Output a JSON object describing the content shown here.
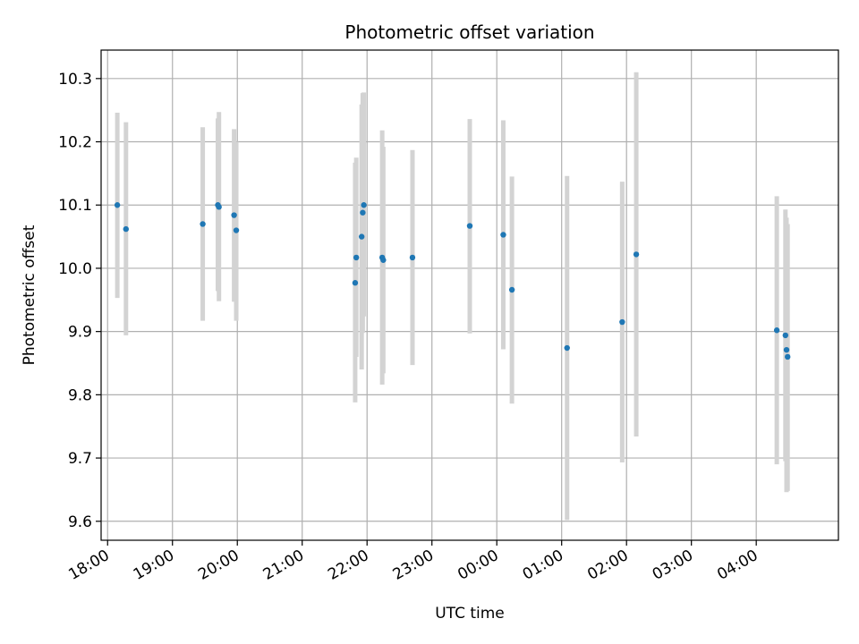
{
  "chart_data": {
    "type": "scatter",
    "title": "Photometric offset variation",
    "xlabel": "UTC time",
    "ylabel": "Photometric offset",
    "grid": true,
    "x_unit": "UTC time of day",
    "x_ticks": [
      {
        "time": "18:00",
        "label": "18:00"
      },
      {
        "time": "19:00",
        "label": "19:00"
      },
      {
        "time": "20:00",
        "label": "20:00"
      },
      {
        "time": "21:00",
        "label": "21:00"
      },
      {
        "time": "22:00",
        "label": "22:00"
      },
      {
        "time": "23:00",
        "label": "23:00"
      },
      {
        "time": "00:00",
        "label": "00:00"
      },
      {
        "time": "01:00",
        "label": "01:00"
      },
      {
        "time": "02:00",
        "label": "02:00"
      },
      {
        "time": "03:00",
        "label": "03:00"
      },
      {
        "time": "04:00",
        "label": "04:00"
      }
    ],
    "y_ticks": [
      9.6,
      9.7,
      9.8,
      9.9,
      10.0,
      10.1,
      10.2,
      10.3
    ],
    "y_tick_labels": [
      "9.6",
      "9.7",
      "9.8",
      "9.9",
      "10.0",
      "10.1",
      "10.2",
      "10.3"
    ],
    "ylim": [
      9.57,
      10.345
    ],
    "xlim": [
      "17:54",
      "05:16"
    ],
    "point_color": "#1f77b4",
    "errorbar_color": "#d3d3d3",
    "points": [
      {
        "t": "18:09",
        "y": 10.1,
        "ylo": 9.953,
        "yhi": 10.246
      },
      {
        "t": "18:17",
        "y": 10.062,
        "ylo": 9.894,
        "yhi": 10.231
      },
      {
        "t": "19:28",
        "y": 10.07,
        "ylo": 9.917,
        "yhi": 10.223
      },
      {
        "t": "19:42",
        "y": 10.1,
        "ylo": 9.964,
        "yhi": 10.237
      },
      {
        "t": "19:43",
        "y": 10.097,
        "ylo": 9.948,
        "yhi": 10.247
      },
      {
        "t": "19:57",
        "y": 10.084,
        "ylo": 9.947,
        "yhi": 10.22
      },
      {
        "t": "19:59",
        "y": 10.06,
        "ylo": 9.917,
        "yhi": 10.2
      },
      {
        "t": "21:49",
        "y": 9.977,
        "ylo": 9.788,
        "yhi": 10.167
      },
      {
        "t": "21:50",
        "y": 10.017,
        "ylo": 9.86,
        "yhi": 10.175
      },
      {
        "t": "21:55",
        "y": 10.05,
        "ylo": 9.84,
        "yhi": 10.259
      },
      {
        "t": "21:56",
        "y": 10.088,
        "ylo": 9.898,
        "yhi": 10.277
      },
      {
        "t": "21:57",
        "y": 10.1,
        "ylo": 9.924,
        "yhi": 10.278
      },
      {
        "t": "22:14",
        "y": 10.017,
        "ylo": 9.816,
        "yhi": 10.218
      },
      {
        "t": "22:15",
        "y": 10.013,
        "ylo": 9.834,
        "yhi": 10.192
      },
      {
        "t": "22:42",
        "y": 10.017,
        "ylo": 9.847,
        "yhi": 10.187
      },
      {
        "t": "23:35",
        "y": 10.067,
        "ylo": 9.897,
        "yhi": 10.236
      },
      {
        "t": "00:06",
        "y": 10.053,
        "ylo": 9.872,
        "yhi": 10.234
      },
      {
        "t": "00:14",
        "y": 9.966,
        "ylo": 9.786,
        "yhi": 10.145
      },
      {
        "t": "01:05",
        "y": 9.874,
        "ylo": 9.602,
        "yhi": 10.146
      },
      {
        "t": "01:56",
        "y": 9.915,
        "ylo": 9.693,
        "yhi": 10.137
      },
      {
        "t": "02:09",
        "y": 10.022,
        "ylo": 9.734,
        "yhi": 10.31
      },
      {
        "t": "04:19",
        "y": 9.902,
        "ylo": 9.69,
        "yhi": 10.114
      },
      {
        "t": "04:27",
        "y": 9.894,
        "ylo": 9.695,
        "yhi": 10.093
      },
      {
        "t": "04:28",
        "y": 9.871,
        "ylo": 9.646,
        "yhi": 10.08
      },
      {
        "t": "04:29",
        "y": 9.86,
        "ylo": 9.648,
        "yhi": 10.07
      }
    ]
  }
}
